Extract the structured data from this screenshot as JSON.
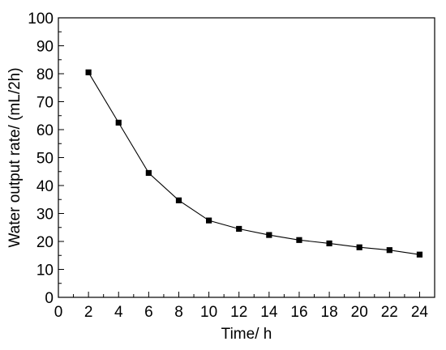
{
  "chart_data": {
    "type": "line",
    "title": "",
    "xlabel": "Time/ h",
    "ylabel": "Water output rate/ (mL/2h)",
    "xlim": [
      0,
      25
    ],
    "ylim": [
      0,
      100
    ],
    "xticks": [
      0,
      2,
      4,
      6,
      8,
      10,
      12,
      14,
      16,
      18,
      20,
      22,
      24
    ],
    "yticks": [
      0,
      10,
      20,
      30,
      40,
      50,
      60,
      70,
      80,
      90,
      100
    ],
    "grid": false,
    "legend": "none",
    "series": [
      {
        "marker": "square",
        "color": "#000000",
        "x": [
          2,
          4,
          6,
          8,
          10,
          12,
          14,
          16,
          18,
          20,
          22,
          24
        ],
        "y": [
          80.5,
          62.5,
          44.5,
          34.7,
          27.5,
          24.5,
          22.3,
          20.5,
          19.3,
          17.9,
          16.9,
          15.3
        ]
      }
    ]
  }
}
